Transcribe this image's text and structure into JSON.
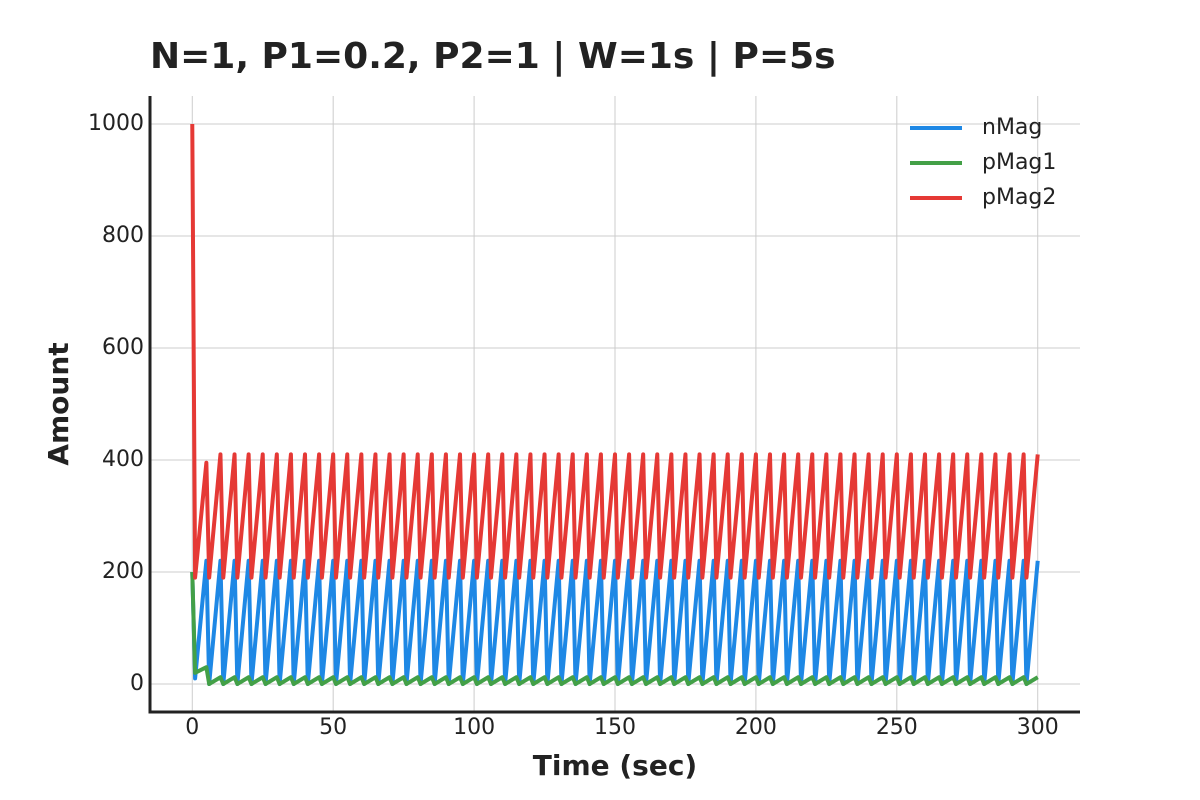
{
  "chart_data": {
    "type": "line",
    "title": "N=1, P1=0.2, P2=1 | W=1s | P=5s",
    "x_label": "Time (sec)",
    "y_label": "Amount",
    "x": [
      0,
      1,
      5,
      6,
      10,
      11,
      15,
      16,
      20,
      21,
      25,
      26,
      30,
      31,
      35,
      36,
      40,
      41,
      45,
      46,
      50,
      51,
      55,
      56,
      60,
      61,
      65,
      66,
      70,
      71,
      75,
      76,
      80,
      81,
      85,
      86,
      90,
      91,
      95,
      96,
      100,
      101,
      105,
      106,
      110,
      111,
      115,
      116,
      120,
      121,
      125,
      126,
      130,
      131,
      135,
      136,
      140,
      141,
      145,
      146,
      150,
      151,
      155,
      156,
      160,
      161,
      165,
      166,
      170,
      171,
      175,
      176,
      180,
      181,
      185,
      186,
      190,
      191,
      195,
      196,
      200,
      201,
      205,
      206,
      210,
      211,
      215,
      216,
      220,
      221,
      225,
      226,
      230,
      231,
      235,
      236,
      240,
      241,
      245,
      246,
      250,
      251,
      255,
      256,
      260,
      261,
      265,
      266,
      270,
      271,
      275,
      276,
      280,
      281,
      285,
      286,
      290,
      291,
      295,
      296,
      300
    ],
    "series": [
      {
        "name": "nMag",
        "color": "#1e88e5",
        "values": [
          200,
          10,
          220,
          0,
          220,
          0,
          220,
          0,
          220,
          0,
          220,
          0,
          220,
          0,
          220,
          0,
          220,
          0,
          220,
          0,
          220,
          0,
          220,
          0,
          220,
          0,
          220,
          0,
          220,
          0,
          220,
          0,
          220,
          0,
          220,
          0,
          220,
          0,
          220,
          0,
          220,
          0,
          220,
          0,
          220,
          0,
          220,
          0,
          220,
          0,
          220,
          0,
          220,
          0,
          220,
          0,
          220,
          0,
          220,
          0,
          220,
          0,
          220,
          0,
          220,
          0,
          220,
          0,
          220,
          0,
          220,
          0,
          220,
          0,
          220,
          0,
          220,
          0,
          220,
          0,
          220,
          0,
          220,
          0,
          220,
          0,
          220,
          0,
          220,
          0,
          220,
          0,
          220,
          0,
          220,
          0,
          220,
          0,
          220,
          0,
          220,
          0,
          220,
          0,
          220,
          0,
          220,
          0,
          220,
          0,
          220,
          0,
          220,
          0,
          220,
          0,
          220,
          0,
          220,
          0,
          220
        ]
      },
      {
        "name": "pMag1",
        "color": "#43a047",
        "values": [
          200,
          20,
          30,
          0,
          12,
          0,
          12,
          0,
          12,
          0,
          12,
          0,
          12,
          0,
          12,
          0,
          12,
          0,
          12,
          0,
          12,
          0,
          12,
          0,
          12,
          0,
          12,
          0,
          12,
          0,
          12,
          0,
          12,
          0,
          12,
          0,
          12,
          0,
          12,
          0,
          12,
          0,
          12,
          0,
          12,
          0,
          12,
          0,
          12,
          0,
          12,
          0,
          12,
          0,
          12,
          0,
          12,
          0,
          12,
          0,
          12,
          0,
          12,
          0,
          12,
          0,
          12,
          0,
          12,
          0,
          12,
          0,
          12,
          0,
          12,
          0,
          12,
          0,
          12,
          0,
          12,
          0,
          12,
          0,
          12,
          0,
          12,
          0,
          12,
          0,
          12,
          0,
          12,
          0,
          12,
          0,
          12,
          0,
          12,
          0,
          12,
          0,
          12,
          0,
          12,
          0,
          12,
          0,
          12,
          0,
          12,
          0,
          12,
          0,
          12,
          0,
          12,
          0,
          12,
          0,
          12
        ]
      },
      {
        "name": "pMag2",
        "color": "#e53935",
        "values": [
          1000,
          190,
          395,
          190,
          410,
          190,
          410,
          190,
          410,
          190,
          410,
          190,
          410,
          190,
          410,
          190,
          410,
          190,
          410,
          190,
          410,
          190,
          410,
          190,
          410,
          190,
          410,
          190,
          410,
          190,
          410,
          190,
          410,
          190,
          410,
          190,
          410,
          190,
          410,
          190,
          410,
          190,
          410,
          190,
          410,
          190,
          410,
          190,
          410,
          190,
          410,
          190,
          410,
          190,
          410,
          190,
          410,
          190,
          410,
          190,
          410,
          190,
          410,
          190,
          410,
          190,
          410,
          190,
          410,
          190,
          410,
          190,
          410,
          190,
          410,
          190,
          410,
          190,
          410,
          190,
          410,
          190,
          410,
          190,
          410,
          190,
          410,
          190,
          410,
          190,
          410,
          190,
          410,
          190,
          410,
          190,
          410,
          190,
          410,
          190,
          410,
          190,
          410,
          190,
          410,
          190,
          410,
          190,
          410,
          190,
          410,
          190,
          410,
          190,
          410,
          190,
          410,
          190,
          410,
          190,
          410
        ]
      }
    ],
    "xlim": [
      -15,
      315
    ],
    "ylim": [
      -50,
      1050
    ],
    "xticks": [
      0,
      50,
      100,
      150,
      200,
      250,
      300
    ],
    "yticks": [
      0,
      200,
      400,
      600,
      800,
      1000
    ],
    "grid": true,
    "legend": "upper right"
  }
}
